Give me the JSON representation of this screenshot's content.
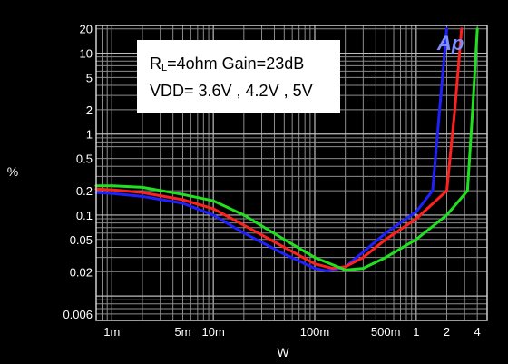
{
  "chart_data": {
    "type": "line",
    "xlabel": "W",
    "ylabel": "%",
    "x_scale": "log",
    "y_scale": "log",
    "xlim": [
      0.0007,
      5
    ],
    "ylim": [
      0.005,
      22
    ],
    "x_ticks": [
      {
        "value": 0.001,
        "label": "1m"
      },
      {
        "value": 0.005,
        "label": "5m"
      },
      {
        "value": 0.01,
        "label": "10m"
      },
      {
        "value": 0.1,
        "label": "100m"
      },
      {
        "value": 0.5,
        "label": "500m"
      },
      {
        "value": 1,
        "label": "1"
      },
      {
        "value": 2,
        "label": "2"
      },
      {
        "value": 4,
        "label": "4"
      }
    ],
    "y_ticks": [
      {
        "value": 20,
        "label": "20"
      },
      {
        "value": 10,
        "label": "10"
      },
      {
        "value": 5,
        "label": "5"
      },
      {
        "value": 2,
        "label": "2"
      },
      {
        "value": 1,
        "label": "1"
      },
      {
        "value": 0.5,
        "label": "0.5"
      },
      {
        "value": 0.2,
        "label": "0.2"
      },
      {
        "value": 0.1,
        "label": "0.1"
      },
      {
        "value": 0.05,
        "label": "0.05"
      },
      {
        "value": 0.02,
        "label": "0.02"
      },
      {
        "value": 0.006,
        "label": "0.006"
      }
    ],
    "grid": true,
    "legend": {
      "line1_main": "R",
      "line1_sub": "L",
      "line1_rest": "=4ohm Gain=23dB",
      "line2": "VDD= 3.6V , 4.2V , 5V"
    },
    "series": [
      {
        "color": "#2020ff",
        "x": [
          0.0007,
          0.001,
          0.002,
          0.005,
          0.01,
          0.02,
          0.05,
          0.1,
          0.13,
          0.15,
          0.2,
          0.3,
          0.5,
          1,
          1.45,
          1.7,
          2.0
        ],
        "y": [
          0.19,
          0.185,
          0.17,
          0.14,
          0.1,
          0.06,
          0.033,
          0.022,
          0.0205,
          0.021,
          0.023,
          0.035,
          0.06,
          0.11,
          0.2,
          2,
          20
        ]
      },
      {
        "color": "#ff2020",
        "x": [
          0.0007,
          0.001,
          0.002,
          0.005,
          0.01,
          0.02,
          0.05,
          0.1,
          0.15,
          0.2,
          0.3,
          0.5,
          1,
          2.0,
          2.4,
          2.8
        ],
        "y": [
          0.21,
          0.205,
          0.19,
          0.155,
          0.12,
          0.075,
          0.04,
          0.025,
          0.022,
          0.023,
          0.03,
          0.05,
          0.09,
          0.2,
          2,
          20
        ]
      },
      {
        "color": "#20e020",
        "x": [
          0.0007,
          0.001,
          0.002,
          0.005,
          0.01,
          0.02,
          0.05,
          0.1,
          0.2,
          0.3,
          0.5,
          1,
          2,
          3.2,
          3.6,
          4.0
        ],
        "y": [
          0.23,
          0.23,
          0.22,
          0.18,
          0.15,
          0.1,
          0.05,
          0.03,
          0.021,
          0.022,
          0.03,
          0.05,
          0.1,
          0.2,
          2,
          20
        ]
      }
    ]
  }
}
